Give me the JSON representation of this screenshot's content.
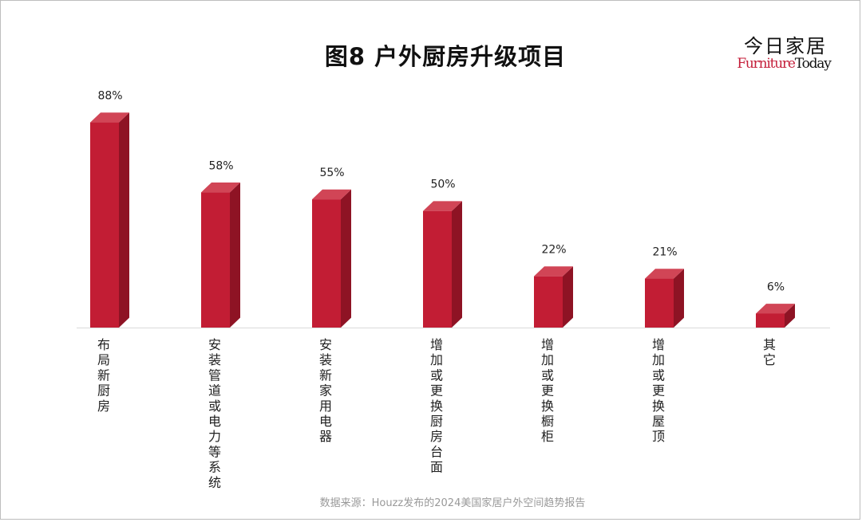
{
  "title": "图8  户外厨房升级项目",
  "logo": {
    "cn": "今日家居",
    "en_part1": "Furniture",
    "en_part2": "Today"
  },
  "source": "数据来源：Houzz发布的2024美国家居户外空间趋势报告",
  "colors": {
    "bar_front": "#c21d34",
    "bar_top": "#d14556",
    "bar_side": "#8e1324",
    "axis": "#d9d9d9"
  },
  "chart_data": {
    "type": "bar",
    "title": "图8  户外厨房升级项目",
    "categories": [
      "布局新厨房",
      "安装管道或电力等系统",
      "安装新家用电器",
      "增加或更换厨房台面",
      "增加或更换橱柜",
      "增加或更换屋顶",
      "其它"
    ],
    "values": [
      88,
      58,
      55,
      50,
      22,
      21,
      6
    ],
    "value_labels": [
      "88%",
      "58%",
      "55%",
      "50%",
      "22%",
      "21%",
      "6%"
    ],
    "unit": "%",
    "ylim": [
      0,
      100
    ],
    "xlabel": "",
    "ylabel": "",
    "grid": false,
    "legend": "none"
  }
}
